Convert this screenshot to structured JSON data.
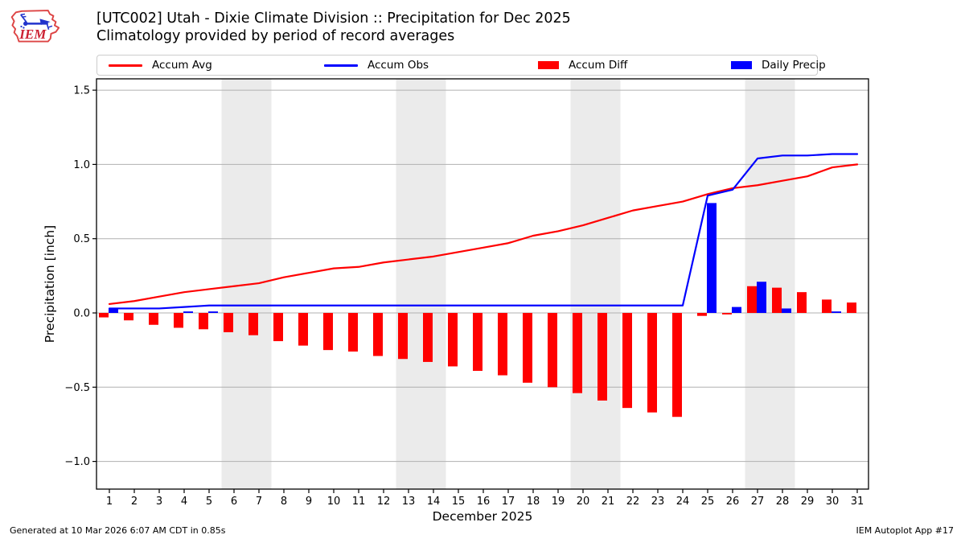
{
  "header": {
    "title_line1": "[UTC002] Utah - Dixie Climate Division :: Precipitation for Dec 2025",
    "title_line2": "Climatology provided by period of record averages",
    "logo_text": "IEM"
  },
  "legend": {
    "items": [
      {
        "label": "Accum Avg",
        "swatch": "line",
        "color": "#ff0000"
      },
      {
        "label": "Accum Obs",
        "swatch": "line",
        "color": "#0000ff"
      },
      {
        "label": "Accum Diff",
        "swatch": "rect",
        "color": "#ff0000"
      },
      {
        "label": "Daily Precip",
        "swatch": "rect",
        "color": "#0000ff"
      }
    ]
  },
  "footer": {
    "generated": "Generated at 10 Mar 2026 6:07 AM CDT in 0.85s",
    "app": "IEM Autoplot App #17"
  },
  "chart_data": {
    "type": "line+bar",
    "title": "[UTC002] Utah - Dixie Climate Division :: Precipitation for Dec 2025",
    "subtitle": "Climatology provided by period of record averages",
    "xlabel": "December 2025",
    "ylabel": "Precipitation [inch]",
    "x": [
      1,
      2,
      3,
      4,
      5,
      6,
      7,
      8,
      9,
      10,
      11,
      12,
      13,
      14,
      15,
      16,
      17,
      18,
      19,
      20,
      21,
      22,
      23,
      24,
      25,
      26,
      27,
      28,
      29,
      30,
      31
    ],
    "y_ticks": [
      1.5,
      1.0,
      0.5,
      0.0,
      -0.5,
      -1.0
    ],
    "ylim": [
      -1.19,
      1.58
    ],
    "xlim": [
      0.48,
      31.45
    ],
    "grid": "horizontal",
    "legend_position": "top",
    "shaded_bands_x": [
      [
        5.5,
        7.5
      ],
      [
        12.5,
        14.5
      ],
      [
        19.5,
        21.5
      ],
      [
        26.5,
        28.5
      ]
    ],
    "shaded_band_days": [
      [
        6,
        7
      ],
      [
        13,
        14
      ],
      [
        20,
        21
      ],
      [
        27,
        28
      ]
    ],
    "series": [
      {
        "name": "Accum Avg",
        "type": "line",
        "color": "#ff0000",
        "values": [
          0.06,
          0.08,
          0.11,
          0.14,
          0.16,
          0.18,
          0.2,
          0.24,
          0.27,
          0.3,
          0.31,
          0.34,
          0.36,
          0.38,
          0.41,
          0.44,
          0.47,
          0.52,
          0.55,
          0.59,
          0.64,
          0.69,
          0.72,
          0.75,
          0.8,
          0.84,
          0.86,
          0.89,
          0.92,
          0.98,
          1.0
        ]
      },
      {
        "name": "Accum Obs",
        "type": "line",
        "color": "#0000ff",
        "values": [
          0.03,
          0.03,
          0.03,
          0.04,
          0.05,
          0.05,
          0.05,
          0.05,
          0.05,
          0.05,
          0.05,
          0.05,
          0.05,
          0.05,
          0.05,
          0.05,
          0.05,
          0.05,
          0.05,
          0.05,
          0.05,
          0.05,
          0.05,
          0.05,
          0.79,
          0.83,
          1.04,
          1.06,
          1.06,
          1.07,
          1.07
        ]
      },
      {
        "name": "Accum Diff",
        "type": "bar",
        "color": "#ff0000",
        "bar_offset": -0.2,
        "values": [
          -0.03,
          -0.05,
          -0.08,
          -0.1,
          -0.11,
          -0.13,
          -0.15,
          -0.19,
          -0.22,
          -0.25,
          -0.26,
          -0.29,
          -0.31,
          -0.33,
          -0.36,
          -0.39,
          -0.42,
          -0.47,
          -0.5,
          -0.54,
          -0.59,
          -0.64,
          -0.67,
          -0.7,
          -0.02,
          -0.01,
          0.18,
          0.17,
          0.14,
          0.09,
          0.07
        ]
      },
      {
        "name": "Daily Precip",
        "type": "bar",
        "color": "#0000ff",
        "bar_offset": 0.2,
        "values": [
          0.03,
          0,
          0,
          0.01,
          0.01,
          0,
          0,
          0,
          0,
          0,
          0,
          0,
          0,
          0,
          0,
          0,
          0,
          0,
          0,
          0,
          0,
          0,
          0,
          0,
          0.74,
          0.04,
          0.21,
          0.03,
          0,
          0.01,
          0
        ]
      }
    ]
  },
  "colors": {
    "accum_avg": "#ff0000",
    "accum_obs": "#0000ff",
    "accum_diff": "#ff0000",
    "daily_precip": "#0000ff",
    "weekend_band": "#ebebeb",
    "gridline": "#b0b0b0",
    "axis": "#000000",
    "background": "#ffffff",
    "logo_outline": "#dd4444",
    "logo_text": "#cc2233",
    "logo_instrument": "#2233cc"
  }
}
